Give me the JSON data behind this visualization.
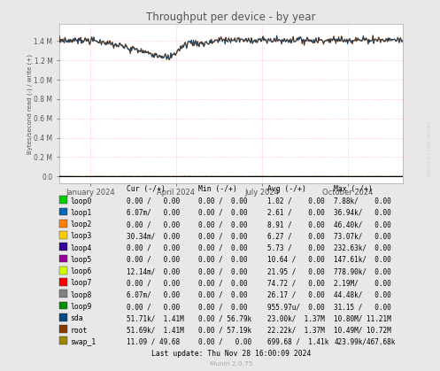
{
  "title": "Throughput per device - by year",
  "ylabel": "Bytes/second read (-) / write (+)",
  "xlabel_ticks": [
    "January 2024",
    "April 2024",
    "July 2024",
    "October 2024"
  ],
  "bg_color": "#e8e8e8",
  "plot_bg_color": "#ffffff",
  "watermark": "RRDTOOL / TOBI OETIKER",
  "munin_version": "Munin 2.0.75",
  "last_update": "Last update: Thu Nov 28 16:00:09 2024",
  "ylim_max": 1500000,
  "ytick_values": [
    0,
    200000,
    400000,
    600000,
    800000,
    1000000,
    1200000,
    1400000
  ],
  "legend_items": [
    {
      "label": "loop0",
      "color": "#00cc00"
    },
    {
      "label": "loop1",
      "color": "#0066b3"
    },
    {
      "label": "loop2",
      "color": "#ff8000"
    },
    {
      "label": "loop3",
      "color": "#ffcc00"
    },
    {
      "label": "loop4",
      "color": "#330099"
    },
    {
      "label": "loop5",
      "color": "#990099"
    },
    {
      "label": "loop6",
      "color": "#ccff00"
    },
    {
      "label": "loop7",
      "color": "#ff0000"
    },
    {
      "label": "loop8",
      "color": "#808080"
    },
    {
      "label": "loop9",
      "color": "#008f00"
    },
    {
      "label": "sda",
      "color": "#00487d"
    },
    {
      "label": "root",
      "color": "#8c3900"
    },
    {
      "label": "swap_1",
      "color": "#9d8600"
    }
  ],
  "legend_cols": [
    {
      "header": "Cur (-/+)",
      "values": [
        "0.00 /   0.00",
        "6.07m/   0.00",
        "0.00 /   0.00",
        "30.34m/  0.00",
        "0.00 /   0.00",
        "0.00 /   0.00",
        "12.14m/  0.00",
        "0.00 /   0.00",
        "6.07m/   0.00",
        "0.00 /   0.00",
        "51.71k/  1.41M",
        "51.69k/  1.41M",
        "11.09 / 49.68"
      ]
    },
    {
      "header": "Min (-/+)",
      "values": [
        "0.00 /  0.00",
        "0.00 /  0.00",
        "0.00 /  0.00",
        "0.00 /  0.00",
        "0.00 /  0.00",
        "0.00 /  0.00",
        "0.00 /  0.00",
        "0.00 /  0.00",
        "0.00 /  0.00",
        "0.00 /  0.00",
        "0.00 / 56.79k",
        "0.00 / 57.19k",
        "0.00 /   0.00"
      ]
    },
    {
      "header": "Avg (-/+)",
      "values": [
        "1.02 /    0.00",
        "2.61 /    0.00",
        "8.91 /    0.00",
        "6.27 /    0.00",
        "5.73 /    0.00",
        "10.64 /   0.00",
        "21.95 /   0.00",
        "74.72 /   0.00",
        "26.17 /   0.00",
        "955.97u/  0.00",
        "23.00k/  1.37M",
        "22.22k/  1.37M",
        "699.68 /  1.41k"
      ]
    },
    {
      "header": "Max (-/+)",
      "values": [
        "7.88k/    0.00",
        "36.94k/   0.00",
        "46.40k/   0.00",
        "73.07k/   0.00",
        "232.63k/  0.00",
        "147.61k/  0.00",
        "778.90k/  0.00",
        "2.19M/    0.00",
        "44.48k/   0.00",
        "31.15 /   0.00",
        "10.80M/ 11.21M",
        "10.49M/ 10.72M",
        "423.99k/467.68k"
      ]
    }
  ]
}
